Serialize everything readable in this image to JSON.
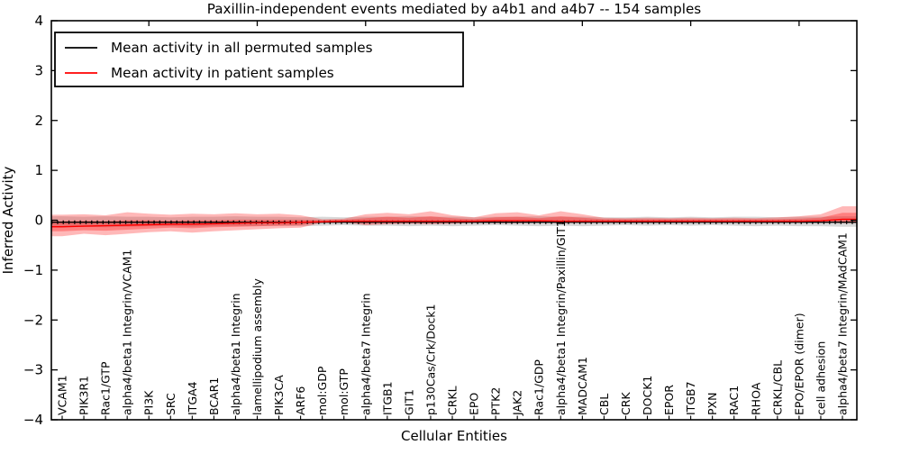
{
  "chart_data": {
    "type": "line",
    "title": "Paxillin-independent events mediated by a4b1 and a4b7 -- 154 samples",
    "xlabel": "Cellular Entities",
    "ylabel": "Inferred Activity",
    "ylim": [
      -4,
      4
    ],
    "ytick_values": [
      4,
      3,
      2,
      1,
      0,
      -1,
      -2,
      -3,
      -4
    ],
    "ytick_labels": [
      "4",
      "3",
      "2",
      "1",
      "0",
      "−1",
      "−2",
      "−3",
      "−4"
    ],
    "grid": false,
    "legend_position": "upper left",
    "categories": [
      "VCAM1",
      "PIK3R1",
      "Rac1/GTP",
      "alpha4/beta1 Integrin/VCAM1",
      "PI3K",
      "SRC",
      "ITGA4",
      "BCAR1",
      "alpha4/beta1 Integrin",
      "lamellipodium assembly",
      "PIK3CA",
      "ARF6",
      "mol:GDP",
      "mol:GTP",
      "alpha4/beta7 Integrin",
      "ITGB1",
      "GIT1",
      "p130Cas/Crk/Dock1",
      "CRKL",
      "EPO",
      "PTK2",
      "JAK2",
      "Rac1/GDP",
      "alpha4/beta1 Integrin/Paxillin/GIT1",
      "MADCAM1",
      "CBL",
      "CRK",
      "DOCK1",
      "EPOR",
      "ITGB7",
      "PXN",
      "RAC1",
      "RHOA",
      "CRKL/CBL",
      "EPO/EPOR (dimer)",
      "cell adhesion",
      "alpha4/beta7 Integrin/MAdCAM1"
    ],
    "series": [
      {
        "name": "Mean activity in all permuted samples",
        "color": "#000000",
        "marker": "plus",
        "values": [
          -0.04,
          -0.04,
          -0.04,
          -0.04,
          -0.04,
          -0.04,
          -0.04,
          -0.04,
          -0.04,
          -0.04,
          -0.04,
          -0.04,
          -0.04,
          -0.04,
          -0.04,
          -0.04,
          -0.04,
          -0.04,
          -0.04,
          -0.04,
          -0.04,
          -0.04,
          -0.04,
          -0.04,
          -0.04,
          -0.04,
          -0.04,
          -0.04,
          -0.04,
          -0.04,
          -0.04,
          -0.04,
          -0.04,
          -0.04,
          -0.04,
          -0.04,
          -0.04
        ]
      },
      {
        "name": "Mean activity in patient samples",
        "color": "#ff0000",
        "marker": "none",
        "values": [
          -0.13,
          -0.12,
          -0.11,
          -0.1,
          -0.09,
          -0.08,
          -0.08,
          -0.07,
          -0.06,
          -0.05,
          -0.05,
          -0.04,
          -0.03,
          -0.02,
          -0.02,
          -0.02,
          -0.02,
          -0.02,
          -0.02,
          -0.02,
          -0.01,
          -0.01,
          -0.01,
          -0.02,
          -0.02,
          -0.02,
          -0.02,
          -0.02,
          -0.02,
          -0.02,
          -0.02,
          -0.02,
          -0.02,
          -0.02,
          -0.02,
          -0.01,
          0.02
        ]
      }
    ],
    "bands": [
      {
        "name": "permuted-samples-range",
        "color": "#999999",
        "opacity": 0.38,
        "lo": [
          -0.15,
          -0.13,
          -0.14,
          -0.13,
          -0.12,
          -0.12,
          -0.13,
          -0.12,
          -0.12,
          -0.12,
          -0.11,
          -0.12,
          -0.11,
          -0.1,
          -0.11,
          -0.11,
          -0.12,
          -0.11,
          -0.12,
          -0.11,
          -0.1,
          -0.11,
          -0.12,
          -0.11,
          -0.12,
          -0.11,
          -0.1,
          -0.11,
          -0.1,
          -0.11,
          -0.1,
          -0.11,
          -0.12,
          -0.11,
          -0.12,
          -0.12,
          -0.13
        ],
        "hi": [
          0.08,
          0.07,
          0.08,
          0.07,
          0.07,
          0.06,
          0.07,
          0.07,
          0.08,
          0.07,
          0.07,
          0.06,
          0.07,
          0.06,
          0.07,
          0.07,
          0.08,
          0.07,
          0.07,
          0.06,
          0.07,
          0.07,
          0.08,
          0.07,
          0.07,
          0.06,
          0.06,
          0.07,
          0.06,
          0.07,
          0.06,
          0.07,
          0.07,
          0.06,
          0.07,
          0.07,
          0.08
        ]
      },
      {
        "name": "patient-samples-range-outer",
        "color": "#ff0000",
        "opacity": 0.28,
        "lo": [
          -0.32,
          -0.27,
          -0.3,
          -0.27,
          -0.24,
          -0.22,
          -0.25,
          -0.22,
          -0.2,
          -0.18,
          -0.16,
          -0.15,
          -0.05,
          -0.04,
          -0.1,
          -0.08,
          -0.07,
          -0.08,
          -0.07,
          -0.05,
          -0.06,
          -0.06,
          -0.05,
          -0.06,
          -0.05,
          -0.04,
          -0.04,
          -0.04,
          -0.03,
          -0.04,
          -0.04,
          -0.03,
          -0.04,
          -0.04,
          -0.04,
          -0.05,
          -0.06
        ],
        "hi": [
          0.11,
          0.12,
          0.1,
          0.16,
          0.13,
          0.11,
          0.13,
          0.12,
          0.14,
          0.12,
          0.13,
          0.1,
          0.02,
          0.03,
          0.12,
          0.15,
          0.12,
          0.18,
          0.1,
          0.06,
          0.14,
          0.16,
          0.1,
          0.18,
          0.12,
          0.05,
          0.04,
          0.05,
          0.04,
          0.05,
          0.04,
          0.05,
          0.04,
          0.06,
          0.08,
          0.12,
          0.28
        ]
      },
      {
        "name": "patient-samples-range-inner",
        "color": "#ff0000",
        "opacity": 0.3,
        "lo": [
          -0.22,
          -0.2,
          -0.21,
          -0.19,
          -0.17,
          -0.15,
          -0.16,
          -0.14,
          -0.13,
          -0.12,
          -0.11,
          -0.1,
          -0.03,
          -0.02,
          -0.06,
          -0.05,
          -0.04,
          -0.05,
          -0.04,
          -0.03,
          -0.03,
          -0.03,
          -0.03,
          -0.03,
          -0.03,
          -0.02,
          -0.02,
          -0.02,
          -0.02,
          -0.02,
          -0.02,
          -0.02,
          -0.02,
          -0.02,
          -0.02,
          -0.02,
          -0.03
        ],
        "hi": [
          -0.02,
          -0.01,
          -0.02,
          0.0,
          0.0,
          -0.01,
          0.0,
          0.0,
          0.01,
          0.01,
          0.01,
          0.01,
          0.0,
          0.01,
          0.04,
          0.07,
          0.05,
          0.08,
          0.04,
          0.02,
          0.06,
          0.07,
          0.04,
          0.08,
          0.05,
          0.02,
          0.02,
          0.02,
          0.02,
          0.02,
          0.02,
          0.02,
          0.02,
          0.02,
          0.03,
          0.05,
          0.15
        ]
      }
    ]
  }
}
